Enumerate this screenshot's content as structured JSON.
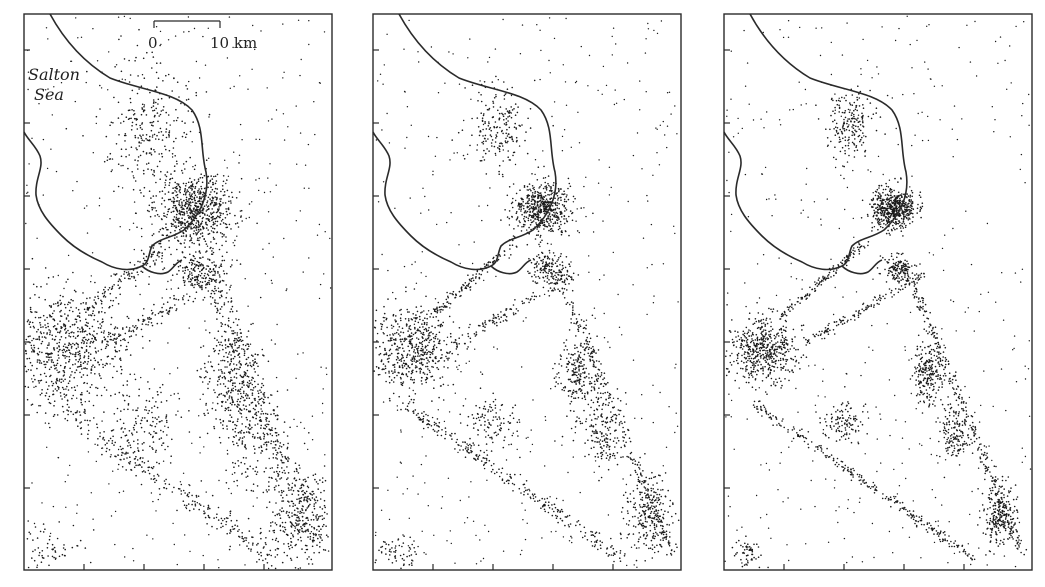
{
  "scale_bar": {
    "start_label": "0",
    "end_label": "10 km"
  },
  "place_label": {
    "line1": "Salton",
    "line2": "Sea"
  },
  "panels": [
    {
      "name": "panel-1",
      "detail": "diffuse"
    },
    {
      "name": "panel-2",
      "detail": "medium"
    },
    {
      "name": "panel-3",
      "detail": "sharp"
    }
  ],
  "colors": {
    "ink": "#1a1a1a",
    "background": "#ffffff"
  }
}
